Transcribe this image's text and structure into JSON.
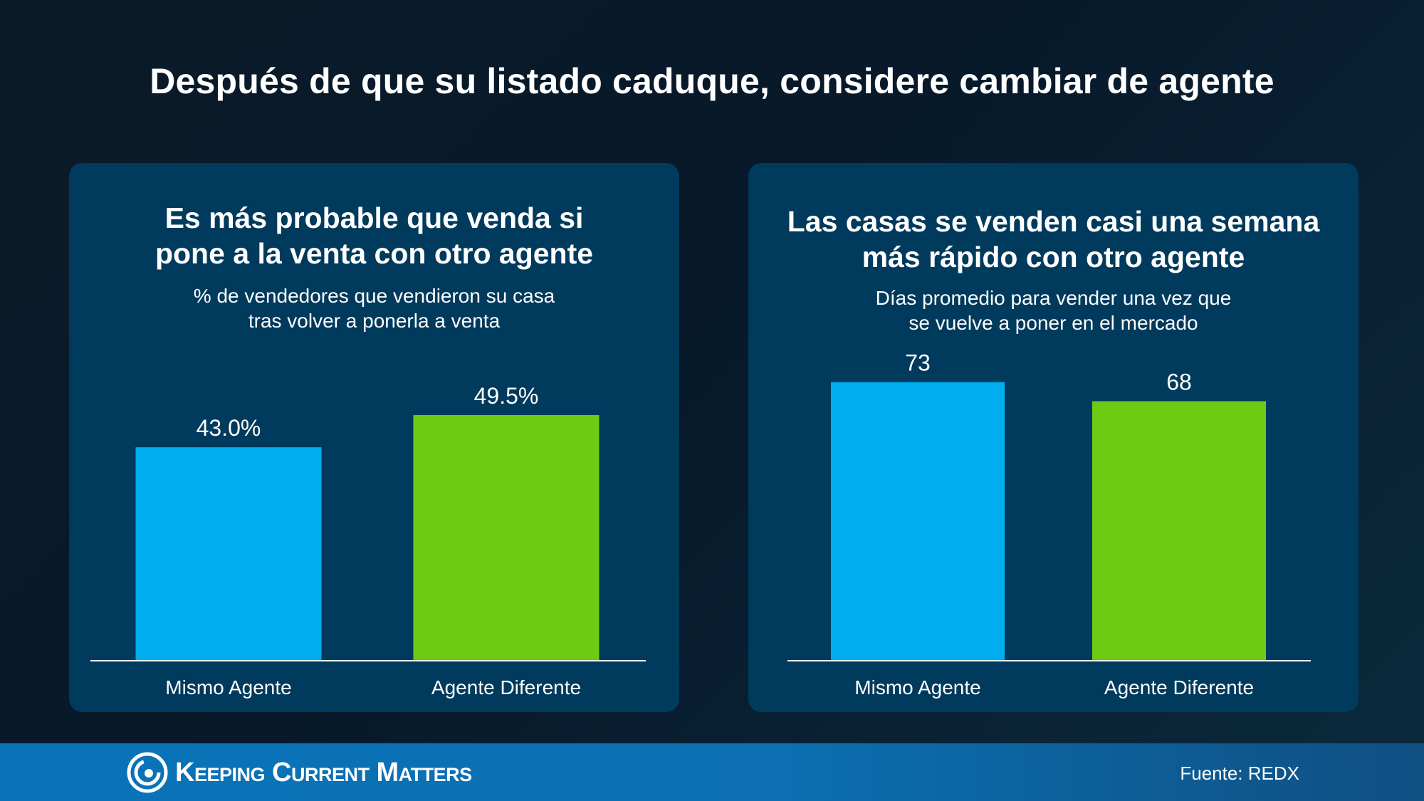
{
  "header": {
    "title": "Después de que su listado caduque, considere cambiar de agente"
  },
  "chart_data": [
    {
      "type": "bar",
      "title_lines": [
        "Es más probable que venda si",
        "pone a la venta con otro agente"
      ],
      "subtitle_lines": [
        "% de vendedores que vendieron su casa",
        "tras volver a ponerla a venta"
      ],
      "categories": [
        "Mismo Agente",
        "Agente Diferente"
      ],
      "values": [
        43.0,
        49.5
      ],
      "value_labels": [
        "43.0%",
        "49.5%"
      ],
      "ylim": [
        0,
        100
      ],
      "colors": [
        "#00aeef",
        "#6ccb12"
      ]
    },
    {
      "type": "bar",
      "title_lines": [
        "Las casas se venden casi una semana",
        "más rápido con otro agente"
      ],
      "subtitle_lines": [
        "Días promedio para vender una vez que",
        "se vuelve a poner en el mercado"
      ],
      "categories": [
        "Mismo Agente",
        "Agente Diferente"
      ],
      "values": [
        73,
        68
      ],
      "value_labels": [
        "73",
        "68"
      ],
      "ylim": [
        0,
        130
      ],
      "colors": [
        "#00aeef",
        "#6ccb12"
      ]
    }
  ],
  "footer": {
    "brand": "Keeping Current Matters",
    "source": "Fuente: REDX"
  }
}
